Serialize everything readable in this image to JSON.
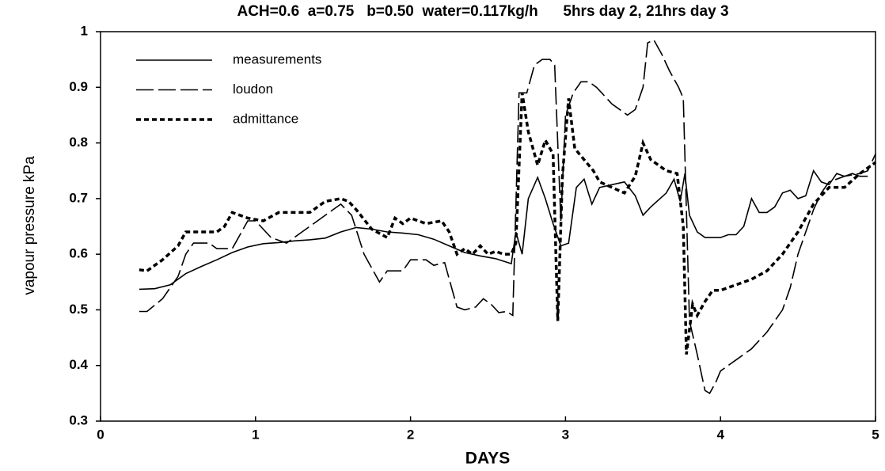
{
  "chart_data": {
    "type": "line",
    "title": "ACH=0.6  a=0.75   b=0.50  water=0.117kg/h      5hrs day 2, 21hrs day 3",
    "x_label": "DAYS",
    "y_label": "vapour pressure kPa",
    "xlim": [
      0,
      5
    ],
    "xticks": [
      0,
      1,
      2,
      3,
      4,
      5
    ],
    "ylim": [
      0.3,
      1
    ],
    "yticks": [
      0.3,
      0.4,
      0.5,
      0.6,
      0.7,
      0.8,
      0.9,
      1
    ],
    "grid": false,
    "legend": "upper left",
    "series": [
      {
        "name": "measurements",
        "color": "#000000",
        "style": "solid",
        "x": [
          0.25,
          0.35,
          0.45,
          0.55,
          0.65,
          0.75,
          0.85,
          0.95,
          1.05,
          1.15,
          1.25,
          1.35,
          1.45,
          1.55,
          1.65,
          1.75,
          1.85,
          1.95,
          2.05,
          2.15,
          2.25,
          2.35,
          2.45,
          2.55,
          2.65,
          2.68,
          2.72,
          2.76,
          2.82,
          2.87,
          2.92,
          2.97,
          3.02,
          3.07,
          3.12,
          3.17,
          3.22,
          3.3,
          3.38,
          3.45,
          3.5,
          3.55,
          3.65,
          3.7,
          3.74,
          3.77,
          3.8,
          3.85,
          3.9,
          4.0,
          4.05,
          4.1,
          4.15,
          4.2,
          4.25,
          4.3,
          4.35,
          4.4,
          4.45,
          4.5,
          4.55,
          4.6,
          4.65,
          4.7,
          4.75,
          4.8,
          4.85,
          4.9,
          4.95
        ],
        "values": [
          0.537,
          0.538,
          0.545,
          0.565,
          0.578,
          0.59,
          0.603,
          0.613,
          0.619,
          0.621,
          0.624,
          0.626,
          0.629,
          0.64,
          0.648,
          0.645,
          0.64,
          0.638,
          0.635,
          0.627,
          0.615,
          0.603,
          0.597,
          0.592,
          0.583,
          0.64,
          0.6,
          0.7,
          0.738,
          0.7,
          0.655,
          0.615,
          0.62,
          0.72,
          0.735,
          0.69,
          0.72,
          0.725,
          0.73,
          0.705,
          0.67,
          0.685,
          0.71,
          0.735,
          0.695,
          0.745,
          0.67,
          0.64,
          0.63,
          0.63,
          0.635,
          0.635,
          0.65,
          0.7,
          0.675,
          0.675,
          0.685,
          0.71,
          0.715,
          0.7,
          0.705,
          0.75,
          0.73,
          0.725,
          0.745,
          0.74,
          0.745,
          0.74,
          0.74
        ]
      },
      {
        "name": "loudon",
        "color": "#000000",
        "style": "dashed",
        "x": [
          0.25,
          0.3,
          0.4,
          0.5,
          0.55,
          0.6,
          0.7,
          0.75,
          0.85,
          0.95,
          1.0,
          1.1,
          1.2,
          1.3,
          1.4,
          1.5,
          1.55,
          1.62,
          1.7,
          1.8,
          1.85,
          1.95,
          2.0,
          2.1,
          2.15,
          2.22,
          2.3,
          2.35,
          2.42,
          2.47,
          2.52,
          2.57,
          2.62,
          2.66,
          2.7,
          2.75,
          2.8,
          2.85,
          2.9,
          2.93,
          2.97,
          3.0,
          3.05,
          3.1,
          3.15,
          3.2,
          3.3,
          3.4,
          3.45,
          3.5,
          3.53,
          3.57,
          3.62,
          3.67,
          3.73,
          3.76,
          3.8,
          3.85,
          3.9,
          3.93,
          3.97,
          4.0,
          4.1,
          4.2,
          4.3,
          4.4,
          4.45,
          4.5,
          4.6,
          4.65,
          4.7,
          4.8,
          4.9,
          4.95,
          5.0
        ],
        "values": [
          0.497,
          0.497,
          0.52,
          0.56,
          0.6,
          0.62,
          0.62,
          0.61,
          0.61,
          0.66,
          0.66,
          0.63,
          0.62,
          0.64,
          0.66,
          0.68,
          0.69,
          0.67,
          0.6,
          0.55,
          0.57,
          0.57,
          0.59,
          0.59,
          0.58,
          0.585,
          0.505,
          0.5,
          0.505,
          0.52,
          0.51,
          0.495,
          0.497,
          0.49,
          0.89,
          0.89,
          0.94,
          0.95,
          0.95,
          0.94,
          0.66,
          0.85,
          0.89,
          0.91,
          0.91,
          0.9,
          0.87,
          0.85,
          0.86,
          0.9,
          0.98,
          0.985,
          0.96,
          0.93,
          0.9,
          0.88,
          0.48,
          0.42,
          0.355,
          0.35,
          0.37,
          0.39,
          0.41,
          0.43,
          0.46,
          0.5,
          0.54,
          0.6,
          0.68,
          0.71,
          0.73,
          0.74,
          0.745,
          0.75,
          0.78
        ]
      },
      {
        "name": "admittance",
        "color": "#000000",
        "style": "dotted",
        "x": [
          0.25,
          0.3,
          0.4,
          0.5,
          0.55,
          0.65,
          0.75,
          0.8,
          0.85,
          0.95,
          1.05,
          1.15,
          1.25,
          1.35,
          1.45,
          1.55,
          1.6,
          1.65,
          1.75,
          1.85,
          1.9,
          1.95,
          2.0,
          2.1,
          2.2,
          2.25,
          2.3,
          2.35,
          2.4,
          2.45,
          2.5,
          2.55,
          2.6,
          2.65,
          2.68,
          2.72,
          2.76,
          2.82,
          2.87,
          2.92,
          2.95,
          2.98,
          3.02,
          3.06,
          3.12,
          3.18,
          3.22,
          3.3,
          3.38,
          3.45,
          3.5,
          3.55,
          3.6,
          3.65,
          3.72,
          3.76,
          3.78,
          3.82,
          3.85,
          3.9,
          3.95,
          4.0,
          4.1,
          4.2,
          4.3,
          4.4,
          4.5,
          4.6,
          4.7,
          4.8,
          4.9,
          5.0
        ],
        "values": [
          0.572,
          0.57,
          0.59,
          0.615,
          0.64,
          0.64,
          0.64,
          0.65,
          0.675,
          0.665,
          0.66,
          0.675,
          0.675,
          0.675,
          0.695,
          0.7,
          0.695,
          0.68,
          0.645,
          0.63,
          0.665,
          0.655,
          0.665,
          0.655,
          0.66,
          0.64,
          0.6,
          0.61,
          0.6,
          0.615,
          0.6,
          0.605,
          0.6,
          0.6,
          0.62,
          0.89,
          0.82,
          0.76,
          0.805,
          0.78,
          0.48,
          0.74,
          0.88,
          0.79,
          0.77,
          0.75,
          0.73,
          0.72,
          0.71,
          0.74,
          0.8,
          0.77,
          0.76,
          0.75,
          0.745,
          0.65,
          0.42,
          0.51,
          0.49,
          0.515,
          0.535,
          0.535,
          0.545,
          0.555,
          0.57,
          0.6,
          0.64,
          0.69,
          0.72,
          0.72,
          0.745,
          0.765
        ]
      }
    ]
  }
}
